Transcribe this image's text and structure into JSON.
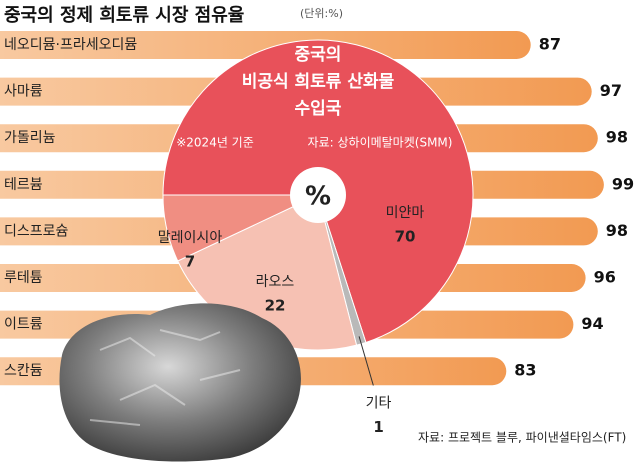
{
  "chart_data": [
    {
      "type": "bar",
      "title": "중국의 정제 희토류 시장 점유율",
      "unit": "(단위:%)",
      "categories": [
        "네오디뮴·프라세오디뮴",
        "사마륨",
        "가돌리늄",
        "테르븀",
        "디스프로슘",
        "루테튬",
        "이트륨",
        "스칸듐"
      ],
      "values": [
        87,
        97,
        98,
        99,
        98,
        96,
        94,
        83
      ],
      "color": "#f3a05e",
      "source": "자료: 프로젝트 블루, 파이낸셜타임스(FT)"
    },
    {
      "type": "pie",
      "title": [
        "중국의",
        "비공식 희토류 산화물",
        "수입국"
      ],
      "note": "※2024년 기준",
      "source": "자료: 상하이메탈마켓(SMM)",
      "center_label": "%",
      "categories": [
        "미얀마",
        "기타",
        "라오스",
        "말레이시아"
      ],
      "values": [
        70,
        1,
        22,
        7
      ],
      "colors": [
        "#e8515a",
        "#b9b9b9",
        "#f6c1b3",
        "#f08e82"
      ]
    }
  ]
}
